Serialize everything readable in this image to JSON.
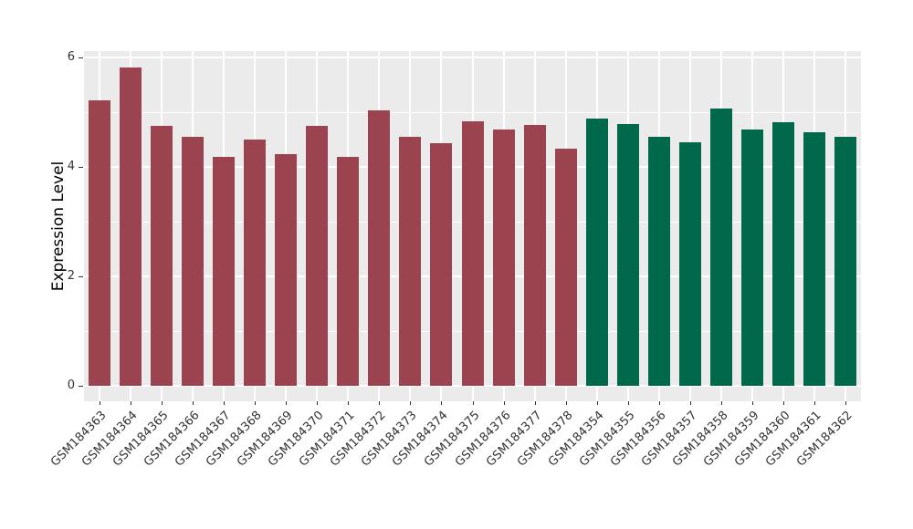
{
  "figure": {
    "background": "#FFFFFF",
    "panel_background": "#EBEBEB",
    "gridline_color": "#FFFFFF",
    "axis_text_color": "#333333",
    "axis_title_color": "#000000"
  },
  "chart_data": {
    "type": "bar",
    "title": "",
    "xlabel": "",
    "ylabel": "Expression Level",
    "ylim": [
      -0.28,
      6.12
    ],
    "yticks": [
      0,
      2,
      4,
      6
    ],
    "yticks_minor": [
      1,
      3,
      5
    ],
    "grid": true,
    "legend_position": "none",
    "categories": [
      "GSM184363",
      "GSM184364",
      "GSM184365",
      "GSM184366",
      "GSM184367",
      "GSM184368",
      "GSM184369",
      "GSM184370",
      "GSM184371",
      "GSM184372",
      "GSM184373",
      "GSM184374",
      "GSM184375",
      "GSM184376",
      "GSM184377",
      "GSM184378",
      "GSM184354",
      "GSM184355",
      "GSM184356",
      "GSM184357",
      "GSM184358",
      "GSM184359",
      "GSM184360",
      "GSM184361",
      "GSM184362"
    ],
    "values": [
      5.22,
      5.82,
      4.75,
      4.55,
      4.18,
      4.5,
      4.23,
      4.76,
      4.18,
      5.03,
      4.55,
      4.43,
      4.83,
      4.68,
      4.77,
      4.33,
      4.88,
      4.78,
      4.55,
      4.45,
      5.07,
      4.68,
      4.82,
      4.63,
      4.55
    ],
    "colors": [
      "#9B4450",
      "#9B4450",
      "#9B4450",
      "#9B4450",
      "#9B4450",
      "#9B4450",
      "#9B4450",
      "#9B4450",
      "#9B4450",
      "#9B4450",
      "#9B4450",
      "#9B4450",
      "#9B4450",
      "#9B4450",
      "#9B4450",
      "#9B4450",
      "#00694B",
      "#00694B",
      "#00694B",
      "#00694B",
      "#00694B",
      "#00694B",
      "#00694B",
      "#00694B",
      "#00694B"
    ],
    "group_colors": {
      "left_group": "#9B4450",
      "right_group": "#00694B"
    },
    "bar_width_fraction": 0.7
  }
}
